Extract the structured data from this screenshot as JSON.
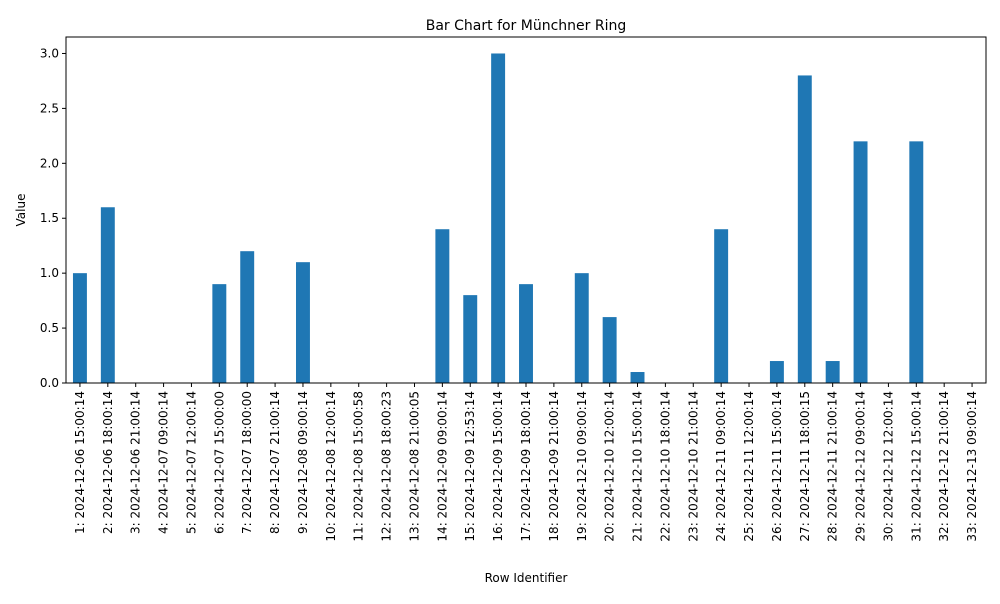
{
  "chart_data": {
    "type": "bar",
    "title": "Bar Chart for Münchner Ring",
    "xlabel": "Row Identifier",
    "ylabel": "Value",
    "ylim": [
      0,
      3.15
    ],
    "yticks": [
      "0.0",
      "0.5",
      "1.0",
      "1.5",
      "2.0",
      "2.5",
      "3.0"
    ],
    "ytick_values": [
      0,
      0.5,
      1.0,
      1.5,
      2.0,
      2.5,
      3.0
    ],
    "bar_color": "#1f77b4",
    "grid": false,
    "legend": "none",
    "categories": [
      "1: 2024-12-06 15:00:14",
      "2: 2024-12-06 18:00:14",
      "3: 2024-12-06 21:00:14",
      "4: 2024-12-07 09:00:14",
      "5: 2024-12-07 12:00:14",
      "6: 2024-12-07 15:00:00",
      "7: 2024-12-07 18:00:00",
      "8: 2024-12-07 21:00:14",
      "9: 2024-12-08 09:00:14",
      "10: 2024-12-08 12:00:14",
      "11: 2024-12-08 15:00:58",
      "12: 2024-12-08 18:00:23",
      "13: 2024-12-08 21:00:05",
      "14: 2024-12-09 09:00:14",
      "15: 2024-12-09 12:53:14",
      "16: 2024-12-09 15:00:14",
      "17: 2024-12-09 18:00:14",
      "18: 2024-12-09 21:00:14",
      "19: 2024-12-10 09:00:14",
      "20: 2024-12-10 12:00:14",
      "21: 2024-12-10 15:00:14",
      "22: 2024-12-10 18:00:14",
      "23: 2024-12-10 21:00:14",
      "24: 2024-12-11 09:00:14",
      "25: 2024-12-11 12:00:14",
      "26: 2024-12-11 15:00:14",
      "27: 2024-12-11 18:00:15",
      "28: 2024-12-11 21:00:14",
      "29: 2024-12-12 09:00:14",
      "30: 2024-12-12 12:00:14",
      "31: 2024-12-12 15:00:14",
      "32: 2024-12-12 21:00:14",
      "33: 2024-12-13 09:00:14"
    ],
    "values": [
      1.0,
      1.6,
      0,
      0,
      0,
      0.9,
      1.2,
      0,
      1.1,
      0,
      0,
      0,
      0,
      1.4,
      0.8,
      3.0,
      0.9,
      0,
      1.0,
      0.6,
      0.1,
      0,
      0,
      1.4,
      0,
      0.2,
      2.8,
      0.2,
      2.2,
      0,
      2.2,
      0,
      0
    ]
  }
}
